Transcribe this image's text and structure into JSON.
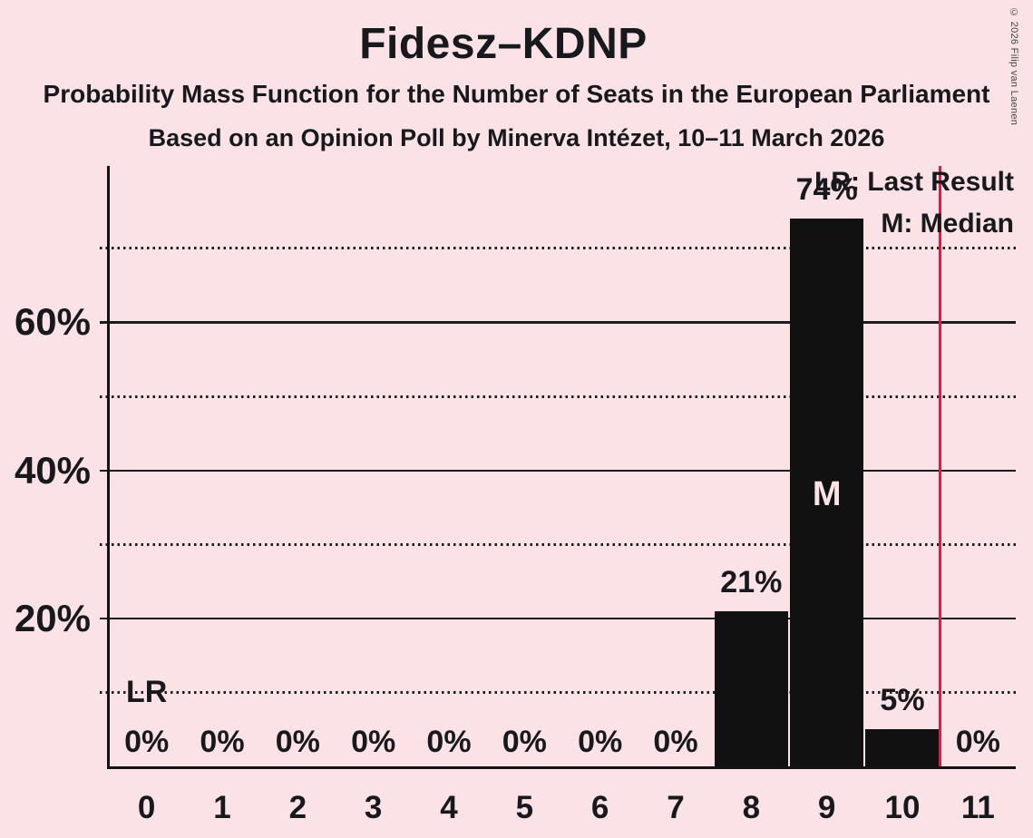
{
  "header": {
    "title": "Fidesz–KDNP",
    "subtitle1": "Probability Mass Function for the Number of Seats in the European Parliament",
    "subtitle2": "Based on an Opinion Poll by Minerva Intézet, 10–11 March 2026"
  },
  "copyright": "© 2026 Filip van Laenen",
  "legend": {
    "lr_label": "LR: Last Result",
    "m_label": "M: Median"
  },
  "colors": {
    "background": "#FBE2E7",
    "bar": "#111111",
    "text": "#17191C",
    "last_result_line": "#DB1D45"
  },
  "chart_data": {
    "type": "bar",
    "title": "Fidesz–KDNP",
    "xlabel": "",
    "ylabel": "",
    "categories": [
      "0",
      "1",
      "2",
      "3",
      "4",
      "5",
      "6",
      "7",
      "8",
      "9",
      "10",
      "11"
    ],
    "values": [
      0,
      0,
      0,
      0,
      0,
      0,
      0,
      0,
      21,
      74,
      5,
      0
    ],
    "bar_labels": [
      "0%",
      "0%",
      "0%",
      "0%",
      "0%",
      "0%",
      "0%",
      "0%",
      "21%",
      "74%",
      "5%",
      "0%"
    ],
    "ylim": [
      0,
      81
    ],
    "y_tick_labels": [
      {
        "pct": 20,
        "label": "20%"
      },
      {
        "pct": 40,
        "label": "40%"
      },
      {
        "pct": 60,
        "label": "60%"
      }
    ],
    "y_solid_gridlines": [
      20,
      40,
      60
    ],
    "y_dotted_gridlines": [
      10,
      30,
      50,
      70
    ],
    "grid": true,
    "legend_position": "top-right",
    "annotations": {
      "last_result_text": "LR",
      "last_result_text_seat": 0,
      "last_result_text_pct": 10,
      "last_result_line_at_value": 11,
      "median_text": "M",
      "median_seat": 9
    }
  }
}
